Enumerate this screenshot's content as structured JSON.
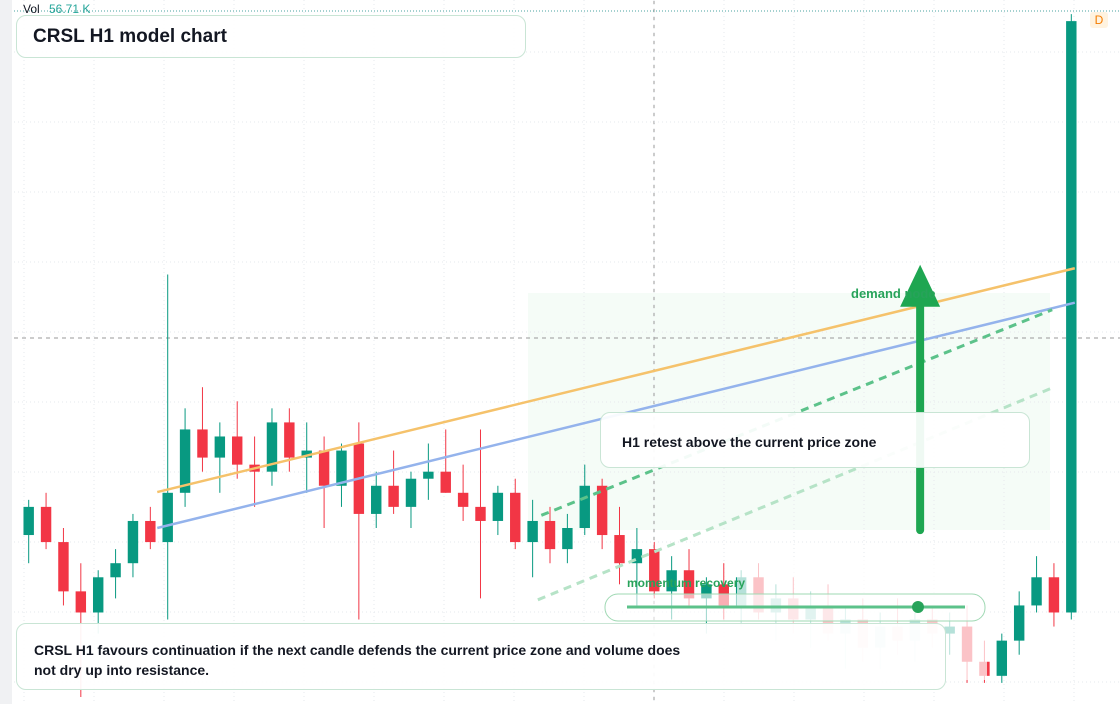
{
  "chart_data": {
    "type": "candlestick",
    "title": "CRSL H1 model chart",
    "volume_label": "Vol",
    "volume_value": "56.71 K",
    "badge": "D",
    "ylim": [
      0,
      100
    ],
    "up_color": "#089981",
    "down_color": "#f23645",
    "open": [
      24,
      28,
      23,
      16,
      13,
      18,
      20,
      26,
      23,
      30,
      39,
      35,
      38,
      34,
      33,
      40,
      35,
      36,
      31,
      37,
      27,
      31,
      28,
      32,
      33,
      30,
      28,
      26,
      30,
      23,
      26,
      22,
      25,
      31,
      24,
      20,
      22,
      16,
      19,
      15,
      17,
      14,
      18,
      13,
      15,
      12,
      14,
      10,
      12,
      8,
      11,
      9,
      12,
      10,
      11,
      6,
      4,
      9,
      14,
      18,
      13
    ],
    "high": [
      29,
      30,
      25,
      20,
      19,
      22,
      27,
      28,
      61,
      42,
      45,
      40,
      43,
      38,
      42,
      42,
      40,
      38,
      37,
      40,
      33,
      36,
      33,
      37,
      39,
      34,
      39,
      31,
      32,
      29,
      28,
      27,
      34,
      32,
      28,
      25,
      23,
      21,
      22,
      18,
      20,
      19,
      20,
      17,
      18,
      16,
      17,
      14,
      15,
      13,
      15,
      13,
      14,
      13,
      14,
      9,
      10,
      16,
      21,
      20,
      98
    ],
    "low": [
      20,
      22,
      14,
      1,
      10,
      15,
      18,
      22,
      12,
      28,
      33,
      30,
      32,
      28,
      31,
      33,
      30,
      25,
      28,
      12,
      25,
      27,
      25,
      29,
      30,
      26,
      15,
      24,
      22,
      18,
      20,
      20,
      24,
      22,
      17,
      14,
      15,
      12,
      14,
      10,
      12,
      11,
      12,
      9,
      10,
      8,
      9,
      5,
      6,
      5,
      7,
      6,
      8,
      7,
      3,
      3,
      3,
      7,
      13,
      11,
      12
    ],
    "close": [
      28,
      23,
      16,
      13,
      18,
      20,
      26,
      23,
      30,
      39,
      35,
      38,
      34,
      33,
      40,
      35,
      36,
      31,
      36,
      27,
      31,
      28,
      32,
      33,
      30,
      28,
      26,
      30,
      23,
      26,
      22,
      25,
      31,
      24,
      20,
      22,
      16,
      19,
      15,
      17,
      14,
      18,
      13,
      15,
      12,
      14,
      10,
      12,
      8,
      11,
      9,
      12,
      10,
      11,
      6,
      4,
      9,
      14,
      18,
      13,
      97
    ],
    "trendlines": [
      {
        "color": "#f5c26b",
        "style": "solid",
        "x": [
          7.4,
          60.2
        ],
        "values": [
          30.1,
          61.9
        ]
      },
      {
        "color": "#94b3ec",
        "style": "solid",
        "x": [
          7.4,
          60.2
        ],
        "values": [
          25.0,
          57.0
        ]
      },
      {
        "color": "#5cc28a",
        "style": "dashed",
        "x": [
          29.5,
          58.9
        ],
        "values": [
          26.8,
          56.0
        ]
      },
      {
        "color": "#b6e3c7",
        "style": "dashed",
        "x": [
          29.3,
          58.9
        ],
        "values": [
          14.8,
          44.9
        ]
      }
    ],
    "arrow": {
      "color": "#1ea651",
      "x": 51.3,
      "from": 24.7,
      "to": 62.4
    },
    "annotations": {
      "demand": "demand node",
      "retest": "H1 retest above the current price zone",
      "momentum": "momentum recovery",
      "note": "CRSL H1 favours continuation if the next candle defends the current price zone and volume does not dry up into resistance."
    }
  }
}
